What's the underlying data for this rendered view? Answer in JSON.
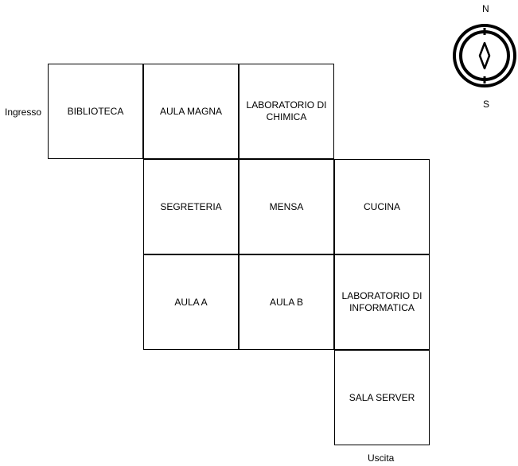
{
  "map": {
    "rooms": {
      "biblioteca": "BIBLIOTECA",
      "aula_magna": "AULA MAGNA",
      "laboratorio_chimica": "LABORATORIO DI\nCHIMICA",
      "segreteria": "SEGRETERIA",
      "mensa": "MENSA",
      "cucina": "CUCINA",
      "aula_a": "AULA A",
      "aula_b": "AULA B",
      "laboratorio_informatica": "LABORATORIO DI\nINFORMATICA",
      "sala_server": "SALA SERVER"
    },
    "entrance_label": "Ingresso",
    "exit_label": "Uscita"
  },
  "compass": {
    "north_label": "N",
    "south_label": "S",
    "icon": "compass-icon"
  }
}
